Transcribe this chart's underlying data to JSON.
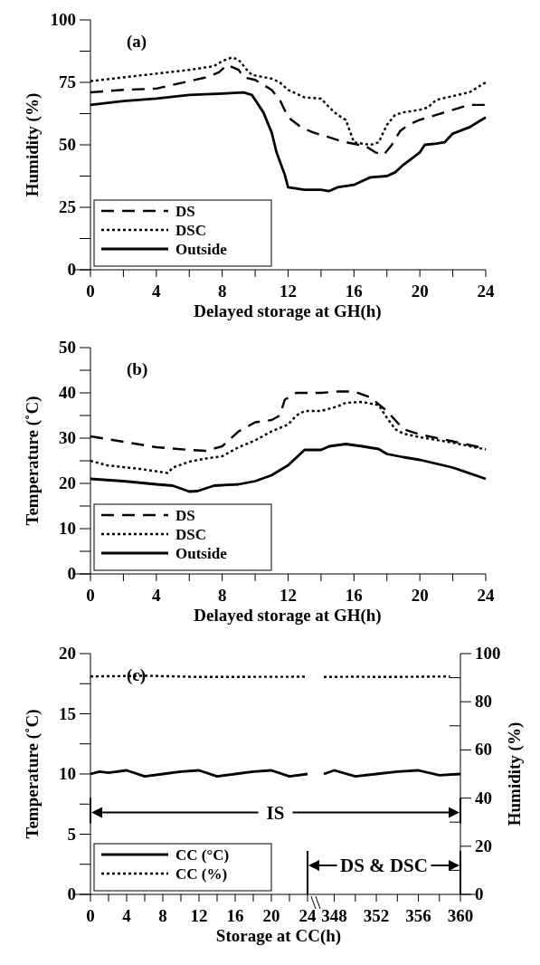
{
  "chart_data": [
    {
      "type": "line",
      "xlabel": "Delayed storage at GH(h)",
      "ylabel": "Humidity (%)",
      "annotations": [
        "(a)"
      ],
      "xlim": [
        0,
        24
      ],
      "ylim": [
        0,
        100
      ],
      "xticks": [
        0,
        {
          "value": 2,
          "label": null
        },
        4,
        {
          "value": 6,
          "label": null
        },
        8,
        {
          "value": 10,
          "label": null
        },
        12,
        {
          "value": 14,
          "label": null
        },
        16,
        {
          "value": 18,
          "label": null
        },
        20,
        {
          "value": 22,
          "label": null
        },
        24
      ],
      "yticks": [
        0,
        {
          "value": 12.5,
          "label": null
        },
        25,
        {
          "value": 37.5,
          "label": null
        },
        50,
        {
          "value": 62.5,
          "label": null
        },
        75,
        {
          "value": 87.5,
          "label": null
        },
        100
      ],
      "legend": "bottom left",
      "series": [
        {
          "name": "DS",
          "color": "#000000",
          "line_style": "dashed",
          "x": [
            0,
            2,
            4,
            6,
            7,
            7.8,
            8.3,
            9,
            9.3,
            10,
            11,
            11.5,
            12,
            12.8,
            13.5,
            14.5,
            15.2,
            16.3,
            16.7,
            17.3,
            17.8,
            18.3,
            18.8,
            19.3,
            20,
            21,
            22,
            23,
            24
          ],
          "values": [
            71,
            72,
            72.5,
            75.5,
            77,
            79,
            82,
            80,
            77,
            76,
            72,
            68,
            61,
            57,
            55,
            53,
            51.5,
            50,
            49.5,
            47,
            46,
            50,
            55.5,
            58,
            60,
            62,
            64,
            66,
            66
          ]
        },
        {
          "name": "DSC",
          "color": "#000000",
          "line_style": "dotted",
          "x": [
            0,
            2,
            4,
            6,
            7.5,
            8,
            8.6,
            9,
            9.5,
            9.8,
            11,
            11.5,
            12,
            13,
            14,
            14.5,
            15,
            15.5,
            16,
            17,
            17.5,
            18,
            18.5,
            19,
            20,
            20.5,
            21,
            22,
            23,
            24
          ],
          "values": [
            75.5,
            77,
            78.5,
            80,
            81.5,
            83.5,
            85,
            84,
            80,
            78,
            76.5,
            75,
            72,
            69,
            68.5,
            65,
            62,
            60,
            51,
            50,
            51,
            58,
            62,
            63,
            64,
            65,
            68,
            69.5,
            71,
            75
          ]
        },
        {
          "name": "Outside",
          "color": "#000000",
          "line_style": "solid",
          "x": [
            0,
            2,
            4,
            6,
            8,
            9.3,
            9.8,
            10.5,
            11,
            11.3,
            11.8,
            12,
            13,
            14,
            14.5,
            15,
            16,
            16.5,
            17,
            18,
            18.5,
            19,
            20,
            20.3,
            21,
            21.5,
            22,
            23,
            24
          ],
          "values": [
            66,
            67.5,
            68.5,
            70,
            70.5,
            71,
            70,
            63,
            55,
            47,
            38,
            33,
            32,
            32,
            31.5,
            33,
            34,
            35.5,
            37,
            37.5,
            39,
            42,
            47,
            50,
            50.5,
            51,
            54.5,
            57,
            61
          ]
        }
      ]
    },
    {
      "type": "line",
      "xlabel": "Delayed storage at GH(h)",
      "ylabel": "Temperature (˚C)",
      "annotations": [
        "(b)"
      ],
      "xlim": [
        0,
        24
      ],
      "ylim": [
        0,
        50
      ],
      "xticks": [
        0,
        {
          "value": 2,
          "label": null
        },
        4,
        {
          "value": 6,
          "label": null
        },
        8,
        {
          "value": 10,
          "label": null
        },
        12,
        {
          "value": 14,
          "label": null
        },
        16,
        {
          "value": 18,
          "label": null
        },
        20,
        {
          "value": 22,
          "label": null
        },
        24
      ],
      "yticks": [
        0,
        {
          "value": 5,
          "label": null
        },
        10,
        {
          "value": 15,
          "label": null
        },
        20,
        {
          "value": 25,
          "label": null
        },
        30,
        {
          "value": 35,
          "label": null
        },
        40,
        {
          "value": 45,
          "label": null
        },
        50
      ],
      "legend": "bottom left",
      "series": [
        {
          "name": "DS",
          "color": "#000000",
          "line_style": "dashed",
          "x": [
            0,
            2,
            4,
            6,
            7,
            8,
            9,
            10,
            11,
            11.5,
            11.8,
            12.5,
            14,
            15,
            16,
            17,
            18,
            19,
            20,
            22,
            24
          ],
          "values": [
            30.4,
            29.2,
            28,
            27.4,
            27.2,
            28.2,
            31.5,
            33.5,
            34,
            35,
            38.5,
            40,
            40,
            40.3,
            40.3,
            39,
            36,
            32,
            30.8,
            29.3,
            27.7
          ]
        },
        {
          "name": "DSC",
          "color": "#000000",
          "line_style": "dotted",
          "x": [
            0,
            1,
            3,
            4.7,
            5,
            6,
            7,
            8,
            9,
            10,
            11,
            12,
            12.5,
            13,
            14,
            15,
            15.5,
            16.5,
            17.5,
            18,
            18.5,
            19,
            20,
            22,
            24
          ],
          "values": [
            25,
            24,
            23.2,
            22.3,
            23.5,
            24.8,
            25.5,
            26,
            28,
            29.5,
            31.5,
            33,
            35,
            36,
            36,
            37,
            37.8,
            38,
            37.3,
            34.5,
            32,
            31,
            30.2,
            29,
            27.5
          ]
        },
        {
          "name": "Outside",
          "color": "#000000",
          "line_style": "solid",
          "x": [
            0,
            2,
            4,
            5,
            6,
            6.5,
            7.5,
            9,
            10,
            11,
            12,
            13,
            14,
            14.5,
            15.5,
            16.5,
            17.5,
            18,
            19,
            20,
            22,
            24
          ],
          "values": [
            21,
            20.5,
            19.8,
            19.5,
            18.2,
            18.3,
            19.5,
            19.8,
            20.5,
            21.8,
            24,
            27.4,
            27.4,
            28.2,
            28.7,
            28.2,
            27.6,
            26.5,
            25.8,
            25.2,
            23.5,
            21
          ]
        }
      ]
    },
    {
      "type": "line",
      "xlabel": "Storage at CC(h)",
      "ylabel": "Temperature (˚C)",
      "annotations": [
        "(c)",
        "IS",
        "DS & DSC"
      ],
      "xlim": [
        0,
        24
      ],
      "ylim": [
        0,
        20
      ],
      "xticks": [
        0,
        {
          "value": 2,
          "label": null
        },
        4,
        {
          "value": 6,
          "label": null
        },
        8,
        {
          "value": 10,
          "label": null
        },
        12,
        {
          "value": 14,
          "label": null
        },
        16,
        {
          "value": 18,
          "label": null
        },
        20,
        {
          "value": 22,
          "label": null
        },
        24
      ],
      "yticks": [
        0,
        {
          "value": 2.5,
          "label": null
        },
        5,
        {
          "value": 7.5,
          "label": null
        },
        10,
        {
          "value": 12.5,
          "label": null
        },
        15,
        {
          "value": 17.5,
          "label": null
        },
        20
      ],
      "y2lim": [
        0,
        100
      ],
      "legend": "bottom left",
      "series": [
        {
          "name": "CC (°C)",
          "color": "#000000",
          "line_style": "solid",
          "x": [
            0,
            1,
            2,
            4,
            6,
            8,
            10,
            12,
            14,
            16,
            18,
            20,
            22,
            24
          ],
          "values": [
            10,
            10.2,
            10.1,
            10.3,
            9.8,
            10,
            10.2,
            10.3,
            9.8,
            10,
            10.2,
            10.3,
            9.8,
            10
          ]
        },
        {
          "name": "CC (%)",
          "color": "#000000",
          "line_style": "dotted",
          "axis": "y2",
          "x": [
            0,
            6,
            12,
            24
          ],
          "values": [
            90.5,
            90.8,
            90.3,
            90.4
          ]
        }
      ]
    },
    {
      "type": "line",
      "y2label": "Humidity (%)",
      "xlim": [
        347,
        360
      ],
      "ylim": [
        0,
        20
      ],
      "y2lim": [
        0,
        100
      ],
      "tick_labels": "x y2",
      "xticks": [
        348,
        {
          "value": 350,
          "label": null
        },
        352,
        {
          "value": 354,
          "label": null
        },
        356,
        {
          "value": 358,
          "label": null
        },
        360
      ],
      "y2ticks": [
        0,
        {
          "value": 10,
          "label": null
        },
        20,
        {
          "value": 30,
          "label": null
        },
        40,
        {
          "value": 50,
          "label": null
        },
        60,
        {
          "value": 70,
          "label": null
        },
        80,
        {
          "value": 90,
          "label": null
        },
        100
      ],
      "series": [
        {
          "color": "#000000",
          "line_style": "solid",
          "x": [
            347,
            348,
            350,
            352,
            354,
            356,
            358,
            360
          ],
          "values": [
            10,
            10.3,
            9.8,
            10,
            10.2,
            10.3,
            9.9,
            10
          ]
        },
        {
          "color": "#000000",
          "line_style": "dotted",
          "axis": "y2",
          "x": [
            347,
            350,
            353,
            356,
            359
          ],
          "values": [
            90.3,
            90.4,
            90.3,
            90.4,
            90.5
          ]
        }
      ]
    }
  ]
}
